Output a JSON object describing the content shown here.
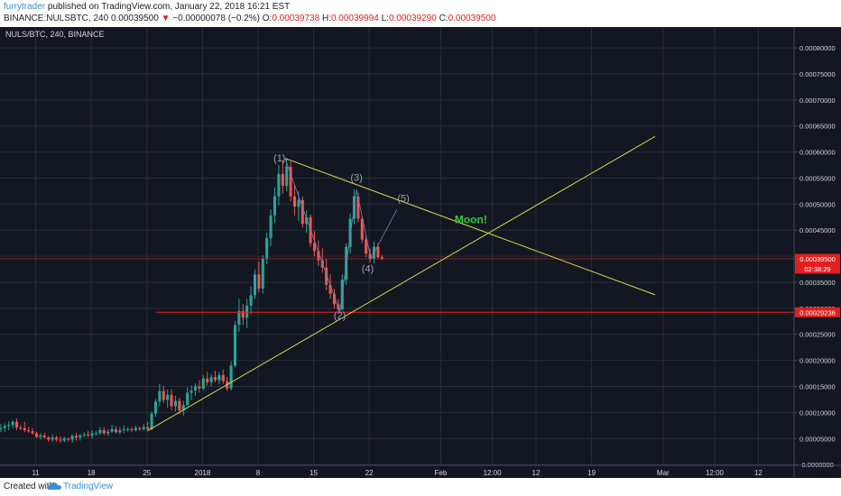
{
  "header": {
    "author": "furrytrader",
    "published_text": "published on TradingView.com, January 22, 2018 16:21 EST",
    "symbol_full": "BINANCE:NULSBTC, 240",
    "last": "0.00039500",
    "change_arrow": "▼",
    "change": "−0.00000078 (−0.2%)",
    "o_label": "O:",
    "o_value": "0.00039738",
    "h_label": "H:",
    "h_value": "0.00039994",
    "l_label": "L:",
    "l_value": "0.00039290",
    "c_label": "C:",
    "c_value": "0.00039500"
  },
  "footer": {
    "created_with": "Created with",
    "brand": "TradingView",
    "logo_icon": "tradingview-cloud-icon"
  },
  "colors": {
    "background": "#131722",
    "grid": "#2a2e39",
    "up": "#26a69a",
    "down": "#ef5350",
    "trendline": "#d8d84a",
    "hline": "#e02020",
    "moon": "#2ecc40",
    "wave": "#9aa3b5",
    "axis_text": "#d1d4dc"
  },
  "chart_data": {
    "type": "candlestick",
    "title": "NULS/BTC, 240, BINANCE",
    "y_tick_labels": [
      "0.00080000",
      "0.00075000",
      "0.00070000",
      "0.00065000",
      "0.00060000",
      "0.00055000",
      "0.00050000",
      "0.00045000",
      "0.00040000",
      "0.00035000",
      "0.00030000",
      "0.00025000",
      "0.00020000",
      "0.00015000",
      "0.00010000",
      "0.00005000",
      "-0.0000000"
    ],
    "y_ticks": [
      0.0008,
      0.00075,
      0.0007,
      0.00065,
      0.0006,
      0.00055,
      0.0005,
      0.00045,
      0.0004,
      0.00035,
      0.0003,
      0.00025,
      0.0002,
      0.00015,
      0.0001,
      5e-05,
      0
    ],
    "ylim": [
      -1.5e-06,
      0.00084
    ],
    "x_tick_labels": [
      "11",
      "18",
      "25",
      "2018",
      "8",
      "15",
      "22",
      "Feb",
      "12:00",
      "12",
      "19",
      "Mar",
      "12:00",
      "12"
    ],
    "x_ticks": [
      9,
      16,
      23,
      30.0,
      37,
      44,
      51,
      60,
      66.5,
      72,
      79,
      88,
      94.5,
      100
    ],
    "xlim": [
      4.5,
      104.5
    ],
    "price_labels": [
      {
        "text": "0.00039500",
        "value": 0.000395,
        "class": "last"
      },
      {
        "text": "02:38:29",
        "value": 0.000395,
        "class": "timer"
      },
      {
        "text": "0.00029236",
        "value": 0.00029236,
        "class": "hline"
      }
    ],
    "hlines": [
      {
        "value": 0.000395,
        "x_start": 4.5,
        "style": "last"
      },
      {
        "value": 0.00029236,
        "x_start": 24.2,
        "style": "support"
      }
    ],
    "trendlines": [
      {
        "x1": 23.1,
        "y1": 6.5e-05,
        "x2": 87,
        "y2": 0.00063
      },
      {
        "x1": 40.4,
        "y1": 0.000588,
        "x2": 87,
        "y2": 0.000326
      }
    ],
    "wave_path": [
      [
        40.4,
        0.000588
      ],
      [
        47.3,
        0.000293
      ],
      [
        49.4,
        0.000528
      ],
      [
        51.2,
        0.000395
      ],
      [
        54.5,
        0.00049
      ]
    ],
    "wave_labels": [
      {
        "text": "(1)",
        "x": 39.7,
        "y": 0.000582
      },
      {
        "text": "(2)",
        "x": 47.3,
        "y": 0.00028
      },
      {
        "text": "(3)",
        "x": 49.4,
        "y": 0.000545
      },
      {
        "text": "(4)",
        "x": 50.8,
        "y": 0.00037
      },
      {
        "text": "(5)",
        "x": 55.3,
        "y": 0.000505
      }
    ],
    "annotation": {
      "text": "Moon!",
      "x": 63.8,
      "y": 0.000463
    },
    "candles": [
      {
        "x": 4.6,
        "o": 7e-05,
        "h": 7.8e-05,
        "l": 6.2e-05,
        "c": 7e-05
      },
      {
        "x": 5.1,
        "o": 7e-05,
        "h": 7.9e-05,
        "l": 6.3e-05,
        "c": 7.4e-05
      },
      {
        "x": 5.6,
        "o": 7.4e-05,
        "h": 8.3e-05,
        "l": 6.6e-05,
        "c": 7.6e-05
      },
      {
        "x": 6.1,
        "o": 7.6e-05,
        "h": 8.5e-05,
        "l": 7e-05,
        "c": 8.2e-05
      },
      {
        "x": 6.6,
        "o": 8.2e-05,
        "h": 8.8e-05,
        "l": 6.6e-05,
        "c": 7.1e-05
      },
      {
        "x": 7.1,
        "o": 7.1e-05,
        "h": 7.6e-05,
        "l": 6.6e-05,
        "c": 7e-05
      },
      {
        "x": 7.6,
        "o": 7e-05,
        "h": 8.2e-05,
        "l": 6.2e-05,
        "c": 6.6e-05
      },
      {
        "x": 8.1,
        "o": 6.6e-05,
        "h": 7.2e-05,
        "l": 6.1e-05,
        "c": 6.4e-05
      },
      {
        "x": 8.6,
        "o": 6.4e-05,
        "h": 7e-05,
        "l": 5.7e-05,
        "c": 6e-05
      },
      {
        "x": 9.1,
        "o": 6e-05,
        "h": 6.3e-05,
        "l": 5.1e-05,
        "c": 5.3e-05
      },
      {
        "x": 9.6,
        "o": 5.3e-05,
        "h": 6e-05,
        "l": 4.8e-05,
        "c": 5.6e-05
      },
      {
        "x": 10.1,
        "o": 5.6e-05,
        "h": 6.1e-05,
        "l": 5e-05,
        "c": 5.2e-05
      },
      {
        "x": 10.6,
        "o": 5.2e-05,
        "h": 5.5e-05,
        "l": 4.4e-05,
        "c": 4.8e-05
      },
      {
        "x": 11.1,
        "o": 4.8e-05,
        "h": 5.8e-05,
        "l": 4.4e-05,
        "c": 5.2e-05
      },
      {
        "x": 11.6,
        "o": 5.2e-05,
        "h": 5.5e-05,
        "l": 4.4e-05,
        "c": 4.8e-05
      },
      {
        "x": 12.1,
        "o": 4.8e-05,
        "h": 5.4e-05,
        "l": 4.2e-05,
        "c": 4.6e-05
      },
      {
        "x": 12.6,
        "o": 4.6e-05,
        "h": 5.4e-05,
        "l": 4.3e-05,
        "c": 5e-05
      },
      {
        "x": 13.1,
        "o": 5e-05,
        "h": 5.2e-05,
        "l": 4.4e-05,
        "c": 4.8e-05
      },
      {
        "x": 13.6,
        "o": 4.8e-05,
        "h": 5.8e-05,
        "l": 4.2e-05,
        "c": 5.5e-05
      },
      {
        "x": 14.1,
        "o": 5.5e-05,
        "h": 6.1e-05,
        "l": 4.6e-05,
        "c": 5.2e-05
      },
      {
        "x": 14.6,
        "o": 5.2e-05,
        "h": 5.9e-05,
        "l": 4.6e-05,
        "c": 5.6e-05
      },
      {
        "x": 15.1,
        "o": 5.6e-05,
        "h": 6.2e-05,
        "l": 5.2e-05,
        "c": 5.8e-05
      },
      {
        "x": 15.6,
        "o": 5.8e-05,
        "h": 6.5e-05,
        "l": 5.2e-05,
        "c": 5.6e-05
      },
      {
        "x": 16.1,
        "o": 5.6e-05,
        "h": 6.6e-05,
        "l": 5e-05,
        "c": 6e-05
      },
      {
        "x": 16.6,
        "o": 6e-05,
        "h": 6.5e-05,
        "l": 5.6e-05,
        "c": 6e-05
      },
      {
        "x": 17.1,
        "o": 6e-05,
        "h": 7.2e-05,
        "l": 5.7e-05,
        "c": 6.6e-05
      },
      {
        "x": 17.6,
        "o": 6.6e-05,
        "h": 7.2e-05,
        "l": 5.6e-05,
        "c": 6e-05
      },
      {
        "x": 18.1,
        "o": 6e-05,
        "h": 6.8e-05,
        "l": 5.5e-05,
        "c": 6.3e-05
      },
      {
        "x": 18.6,
        "o": 6.3e-05,
        "h": 7.6e-05,
        "l": 6e-05,
        "c": 6.8e-05
      },
      {
        "x": 19.1,
        "o": 6.8e-05,
        "h": 7.4e-05,
        "l": 5.9e-05,
        "c": 6.2e-05
      },
      {
        "x": 19.6,
        "o": 6.2e-05,
        "h": 7.2e-05,
        "l": 5.8e-05,
        "c": 6.6e-05
      },
      {
        "x": 20.1,
        "o": 6.6e-05,
        "h": 7.5e-05,
        "l": 6e-05,
        "c": 6.8e-05
      },
      {
        "x": 20.6,
        "o": 6.8e-05,
        "h": 7.2e-05,
        "l": 6.3e-05,
        "c": 6.8e-05
      },
      {
        "x": 21.1,
        "o": 6.8e-05,
        "h": 7.2e-05,
        "l": 6.2e-05,
        "c": 6.6e-05
      },
      {
        "x": 21.6,
        "o": 6.6e-05,
        "h": 7.5e-05,
        "l": 6.3e-05,
        "c": 7e-05
      },
      {
        "x": 22.1,
        "o": 7e-05,
        "h": 7.3e-05,
        "l": 6.4e-05,
        "c": 6.8e-05
      },
      {
        "x": 22.6,
        "o": 6.8e-05,
        "h": 7.8e-05,
        "l": 6.5e-05,
        "c": 7.2e-05
      },
      {
        "x": 23.1,
        "o": 7.2e-05,
        "h": 8.2e-05,
        "l": 6.4e-05,
        "c": 6.8e-05
      },
      {
        "x": 23.6,
        "o": 6.8e-05,
        "h": 0.000102,
        "l": 6.6e-05,
        "c": 9.8e-05
      },
      {
        "x": 24.1,
        "o": 9.8e-05,
        "h": 0.000126,
        "l": 9.2e-05,
        "c": 0.000121
      },
      {
        "x": 24.6,
        "o": 0.000121,
        "h": 0.000155,
        "l": 0.000112,
        "c": 0.000141
      },
      {
        "x": 25.1,
        "o": 0.000141,
        "h": 0.000151,
        "l": 0.000118,
        "c": 0.000124
      },
      {
        "x": 25.6,
        "o": 0.000124,
        "h": 0.000144,
        "l": 0.000109,
        "c": 0.000134
      },
      {
        "x": 26.1,
        "o": 0.000134,
        "h": 0.000145,
        "l": 0.000104,
        "c": 0.000112
      },
      {
        "x": 26.6,
        "o": 0.000112,
        "h": 0.000132,
        "l": 0.000102,
        "c": 0.000122
      },
      {
        "x": 27.1,
        "o": 0.000122,
        "h": 0.000128,
        "l": 9.7e-05,
        "c": 0.000104
      },
      {
        "x": 27.6,
        "o": 0.000104,
        "h": 0.000122,
        "l": 9.4e-05,
        "c": 0.000114
      },
      {
        "x": 28.1,
        "o": 0.000114,
        "h": 0.000148,
        "l": 0.000112,
        "c": 0.000138
      },
      {
        "x": 28.6,
        "o": 0.000138,
        "h": 0.000152,
        "l": 0.000124,
        "c": 0.000142
      },
      {
        "x": 29.1,
        "o": 0.000142,
        "h": 0.000156,
        "l": 0.000132,
        "c": 0.00015
      },
      {
        "x": 29.6,
        "o": 0.00015,
        "h": 0.000162,
        "l": 0.000138,
        "c": 0.000146
      },
      {
        "x": 30.1,
        "o": 0.000146,
        "h": 0.000172,
        "l": 0.000143,
        "c": 0.000165
      },
      {
        "x": 30.6,
        "o": 0.000165,
        "h": 0.000178,
        "l": 0.000152,
        "c": 0.000158
      },
      {
        "x": 31.1,
        "o": 0.000158,
        "h": 0.000174,
        "l": 0.00015,
        "c": 0.000168
      },
      {
        "x": 31.6,
        "o": 0.000168,
        "h": 0.00018,
        "l": 0.000158,
        "c": 0.000162
      },
      {
        "x": 32.1,
        "o": 0.000162,
        "h": 0.000178,
        "l": 0.000154,
        "c": 0.000172
      },
      {
        "x": 32.6,
        "o": 0.000172,
        "h": 0.000182,
        "l": 0.000155,
        "c": 0.00016
      },
      {
        "x": 33.1,
        "o": 0.00016,
        "h": 0.000168,
        "l": 0.000141,
        "c": 0.000146
      },
      {
        "x": 33.6,
        "o": 0.000146,
        "h": 0.000198,
        "l": 0.000142,
        "c": 0.00019
      },
      {
        "x": 34.1,
        "o": 0.00019,
        "h": 0.000275,
        "l": 0.000186,
        "c": 0.000268
      },
      {
        "x": 34.6,
        "o": 0.000268,
        "h": 0.000318,
        "l": 0.000255,
        "c": 0.000295
      },
      {
        "x": 35.1,
        "o": 0.000295,
        "h": 0.000308,
        "l": 0.000268,
        "c": 0.000282
      },
      {
        "x": 35.6,
        "o": 0.000282,
        "h": 0.000318,
        "l": 0.000262,
        "c": 0.000305
      },
      {
        "x": 36.1,
        "o": 0.000305,
        "h": 0.000342,
        "l": 0.000288,
        "c": 0.000325
      },
      {
        "x": 36.6,
        "o": 0.000325,
        "h": 0.000375,
        "l": 0.000318,
        "c": 0.000365
      },
      {
        "x": 37.1,
        "o": 0.000365,
        "h": 0.00039,
        "l": 0.00033,
        "c": 0.000338
      },
      {
        "x": 37.6,
        "o": 0.000338,
        "h": 0.000402,
        "l": 0.000328,
        "c": 0.000395
      },
      {
        "x": 38.1,
        "o": 0.000395,
        "h": 0.000445,
        "l": 0.000385,
        "c": 0.000435
      },
      {
        "x": 38.6,
        "o": 0.000435,
        "h": 0.00049,
        "l": 0.00042,
        "c": 0.000478
      },
      {
        "x": 39.1,
        "o": 0.000478,
        "h": 0.000532,
        "l": 0.000465,
        "c": 0.000515
      },
      {
        "x": 39.6,
        "o": 0.000515,
        "h": 0.000575,
        "l": 0.000498,
        "c": 0.000558
      },
      {
        "x": 40.1,
        "o": 0.000558,
        "h": 0.000585,
        "l": 0.00052,
        "c": 0.000535
      },
      {
        "x": 40.6,
        "o": 0.000535,
        "h": 0.000588,
        "l": 0.000525,
        "c": 0.000572
      },
      {
        "x": 41.1,
        "o": 0.000572,
        "h": 0.000582,
        "l": 0.000505,
        "c": 0.000515
      },
      {
        "x": 41.6,
        "o": 0.000515,
        "h": 0.000538,
        "l": 0.000478,
        "c": 0.000495
      },
      {
        "x": 42.1,
        "o": 0.000495,
        "h": 0.000525,
        "l": 0.000468,
        "c": 0.000508
      },
      {
        "x": 42.6,
        "o": 0.000508,
        "h": 0.000515,
        "l": 0.000455,
        "c": 0.000462
      },
      {
        "x": 43.1,
        "o": 0.000462,
        "h": 0.000488,
        "l": 0.000445,
        "c": 0.000475
      },
      {
        "x": 43.6,
        "o": 0.000475,
        "h": 0.00048,
        "l": 0.000418,
        "c": 0.000425
      },
      {
        "x": 44.1,
        "o": 0.000425,
        "h": 0.000448,
        "l": 0.0004,
        "c": 0.00041
      },
      {
        "x": 44.6,
        "o": 0.00041,
        "h": 0.00043,
        "l": 0.000382,
        "c": 0.000392
      },
      {
        "x": 45.1,
        "o": 0.000392,
        "h": 0.000415,
        "l": 0.000368,
        "c": 0.000378
      },
      {
        "x": 45.6,
        "o": 0.000378,
        "h": 0.000395,
        "l": 0.000335,
        "c": 0.000345
      },
      {
        "x": 46.1,
        "o": 0.000345,
        "h": 0.000365,
        "l": 0.000318,
        "c": 0.000328
      },
      {
        "x": 46.6,
        "o": 0.000328,
        "h": 0.000338,
        "l": 0.0003,
        "c": 0.000308
      },
      {
        "x": 47.1,
        "o": 0.000308,
        "h": 0.000318,
        "l": 0.000293,
        "c": 0.000298
      },
      {
        "x": 47.6,
        "o": 0.000298,
        "h": 0.000365,
        "l": 0.000295,
        "c": 0.000355
      },
      {
        "x": 48.1,
        "o": 0.000355,
        "h": 0.000425,
        "l": 0.000345,
        "c": 0.000418
      },
      {
        "x": 48.6,
        "o": 0.000418,
        "h": 0.000482,
        "l": 0.000405,
        "c": 0.000472
      },
      {
        "x": 49.1,
        "o": 0.000472,
        "h": 0.000528,
        "l": 0.000462,
        "c": 0.000515
      },
      {
        "x": 49.6,
        "o": 0.000515,
        "h": 0.000522,
        "l": 0.000465,
        "c": 0.000472
      },
      {
        "x": 50.1,
        "o": 0.000472,
        "h": 0.000478,
        "l": 0.000425,
        "c": 0.000432
      },
      {
        "x": 50.6,
        "o": 0.000432,
        "h": 0.00044,
        "l": 0.000398,
        "c": 0.000405
      },
      {
        "x": 51.1,
        "o": 0.000405,
        "h": 0.000415,
        "l": 0.000388,
        "c": 0.000395
      },
      {
        "x": 51.6,
        "o": 0.000395,
        "h": 0.000428,
        "l": 0.000386,
        "c": 0.000418
      },
      {
        "x": 52.1,
        "o": 0.000418,
        "h": 0.000425,
        "l": 0.000395,
        "c": 0.000398
      },
      {
        "x": 52.6,
        "o": 0.000398,
        "h": 0.000402,
        "l": 0.000392,
        "c": 0.000395
      }
    ]
  }
}
